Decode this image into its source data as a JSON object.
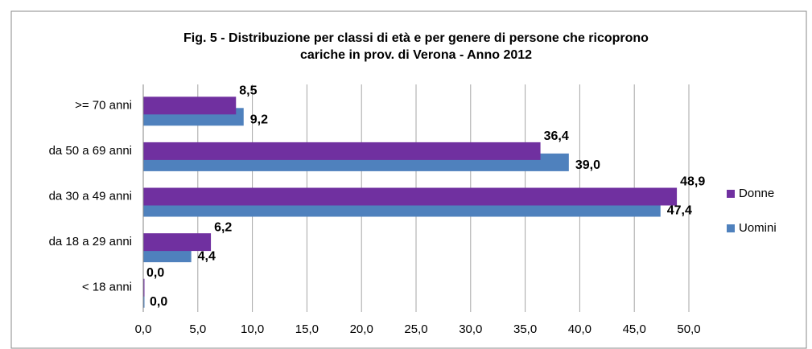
{
  "chart_data": {
    "type": "hbar",
    "title": [
      "Fig. 5 - Distribuzione per classi di età e per genere di persone che ricoprono",
      "cariche in prov. di Verona - Anno 2012"
    ],
    "categories": [
      ">= 70 anni",
      "da 50 a 69 anni",
      "da 30 a 49 anni",
      "da 18 a 29 anni",
      "< 18 anni"
    ],
    "series": [
      {
        "name": "Donne",
        "color": "#7030a0",
        "label_color": "#ff0000",
        "values": [
          8.5,
          36.4,
          48.9,
          6.2,
          0.0
        ],
        "value_labels": [
          "8,5",
          "36,4",
          "48,9",
          "6,2",
          "0,0"
        ]
      },
      {
        "name": "Uomini",
        "color": "#4f81bd",
        "label_color": "#000000",
        "values": [
          9.2,
          39.0,
          47.4,
          4.4,
          0.0
        ],
        "value_labels": [
          "9,2",
          "39,0",
          "47,4",
          "4,4",
          "0,0"
        ]
      }
    ],
    "xlim": [
      0,
      50
    ],
    "xticks": [
      {
        "value": 0,
        "label": "0,0"
      },
      {
        "value": 5,
        "label": "5,0"
      },
      {
        "value": 10,
        "label": "10,0"
      },
      {
        "value": 15,
        "label": "15,0"
      },
      {
        "value": 20,
        "label": "20,0"
      },
      {
        "value": 25,
        "label": "25,0"
      },
      {
        "value": 30,
        "label": "30,0"
      },
      {
        "value": 35,
        "label": "35,0"
      },
      {
        "value": 40,
        "label": "40,0"
      },
      {
        "value": 45,
        "label": "45,0"
      },
      {
        "value": 50,
        "label": "50,0"
      }
    ],
    "grid": true,
    "legend": "right"
  }
}
